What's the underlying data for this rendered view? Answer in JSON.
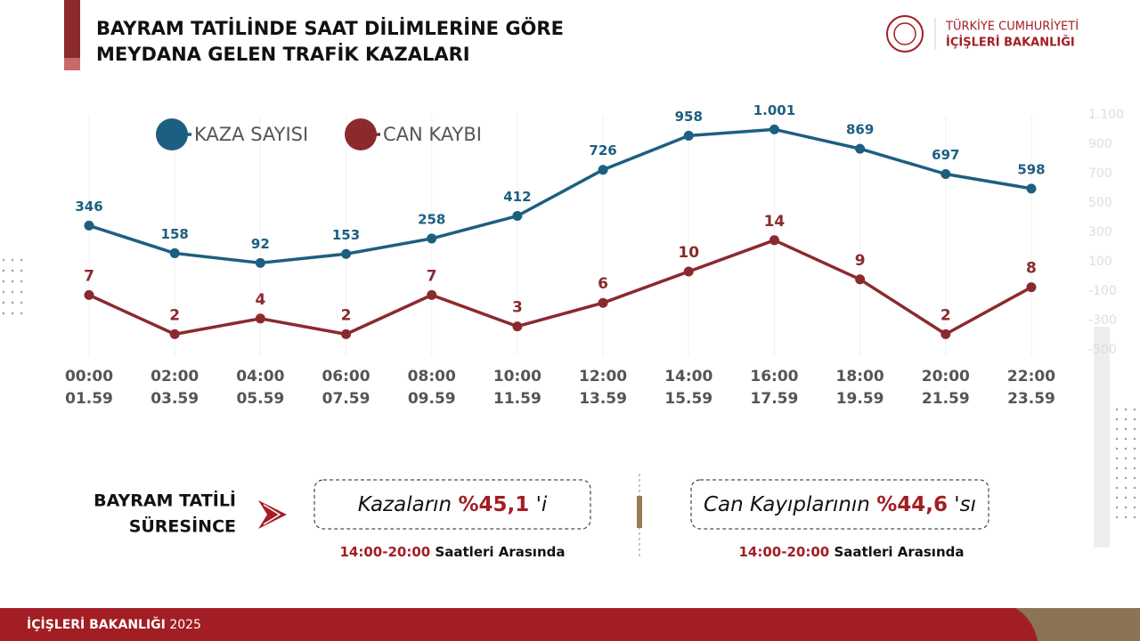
{
  "header": {
    "title": [
      "BAYRAM TATİLİNDE SAAT DİLİMLERİNE GÖRE",
      "MEYDANA GELEN TRAFİK KAZALARI"
    ],
    "org": [
      "TÜRKİYE CUMHURİYETİ",
      "İÇİŞLERİ BAKANLIĞI"
    ]
  },
  "chart_data": {
    "type": "line",
    "categories": [
      [
        "00:00",
        "01.59"
      ],
      [
        "02:00",
        "03.59"
      ],
      [
        "04:00",
        "05.59"
      ],
      [
        "06:00",
        "07.59"
      ],
      [
        "08:00",
        "09.59"
      ],
      [
        "10:00",
        "11.59"
      ],
      [
        "12:00",
        "13.59"
      ],
      [
        "14:00",
        "15.59"
      ],
      [
        "16:00",
        "17.59"
      ],
      [
        "18:00",
        "19.59"
      ],
      [
        "20:00",
        "21.59"
      ],
      [
        "22:00",
        "23.59"
      ]
    ],
    "series": [
      {
        "name": "KAZA SAYISI",
        "color": "#1d5f80",
        "values": [
          346,
          158,
          92,
          153,
          258,
          412,
          726,
          958,
          1001,
          869,
          697,
          598
        ],
        "value_labels": [
          "346",
          "158",
          "92",
          "153",
          "258",
          "412",
          "726",
          "958",
          "1.001",
          "869",
          "697",
          "598"
        ]
      },
      {
        "name": "CAN KAYBI",
        "color": "#8b2a2e",
        "axis": "y2",
        "values": [
          7,
          2,
          4,
          2,
          7,
          3,
          6,
          10,
          14,
          9,
          2,
          8
        ]
      }
    ],
    "ylim": [
      -500,
      1100
    ],
    "yticks": [
      {
        "value": 1100,
        "label": "1.100"
      },
      900,
      700,
      500,
      300,
      100,
      -100,
      -300,
      -500
    ],
    "y2lim": [
      0,
      30
    ]
  },
  "summary": {
    "label": [
      "BAYRAM TATİLİ",
      "SÜRESİNCE"
    ],
    "boxes": [
      {
        "pre": "Kazaların",
        "value": "%45,1",
        "post": "'i",
        "time": "14:00-20:00",
        "note": "Saatleri Arasında"
      },
      {
        "pre": "Can Kayıplarının",
        "value": "%44,6",
        "post": "'sı",
        "time": "14:00-20:00",
        "note": "Saatleri Arasında"
      }
    ]
  },
  "footer": {
    "org": "İÇİŞLERİ BAKANLIĞI",
    "year": "2025"
  }
}
